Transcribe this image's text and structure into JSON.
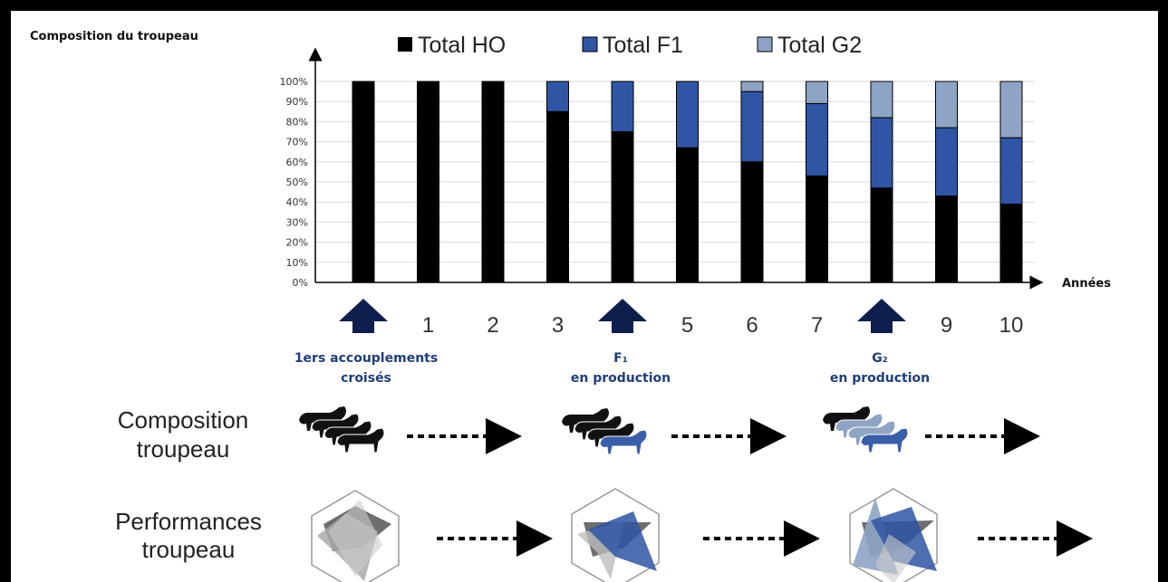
{
  "chart_data": {
    "type": "bar",
    "stacked": true,
    "title": "",
    "ylabel": "Composition du troupeau",
    "xlabel": "Années",
    "ylim": [
      0,
      100
    ],
    "yticks": [
      "0%",
      "10%",
      "20%",
      "30%",
      "40%",
      "50%",
      "60%",
      "70%",
      "80%",
      "90%",
      "100%"
    ],
    "grid": true,
    "legend_position": "top",
    "categories": [
      "0",
      "1",
      "2",
      "3",
      "4",
      "5",
      "6",
      "7",
      "8",
      "9",
      "10"
    ],
    "category_labels": [
      "",
      "1",
      "2",
      "3",
      "",
      "5",
      "6",
      "7",
      "",
      "9",
      "10"
    ],
    "series": [
      {
        "name": "Total HO",
        "color": "#000000",
        "values": [
          100,
          100,
          100,
          85,
          75,
          67,
          60,
          53,
          47,
          43,
          39
        ]
      },
      {
        "name": "Total F1",
        "color": "#2f55a4",
        "values": [
          0,
          0,
          0,
          15,
          25,
          33,
          35,
          36,
          35,
          34,
          33
        ]
      },
      {
        "name": "Total G2",
        "color": "#8ea4c4",
        "values": [
          0,
          0,
          0,
          0,
          0,
          0,
          5,
          11,
          18,
          23,
          28
        ]
      }
    ],
    "markers": [
      {
        "category": "0",
        "icon": "up-arrow-icon",
        "lines": [
          "1ers accouplements",
          "croisés"
        ]
      },
      {
        "category": "4",
        "icon": "up-arrow-icon",
        "lines": [
          "F₁",
          "en production"
        ]
      },
      {
        "category": "8",
        "icon": "up-arrow-icon",
        "lines": [
          "G₂",
          "en production"
        ]
      }
    ]
  },
  "illustrations": {
    "composition_label": [
      "Composition",
      "troupeau"
    ],
    "performances_label": [
      "Performances",
      "troupeau"
    ],
    "composition_icons": [
      "cow-herd-black-icon",
      "cow-herd-mixed-f1-icon",
      "cow-herd-mixed-g2-icon"
    ],
    "performance_icons": [
      "radar-chart-ho-icon",
      "radar-chart-f1-icon",
      "radar-chart-g2-icon"
    ],
    "arrow_icon": "dotted-arrow-icon",
    "colors": {
      "ho": "#000000",
      "f1": "#2f55a4",
      "g2": "#8ea4c4"
    }
  }
}
